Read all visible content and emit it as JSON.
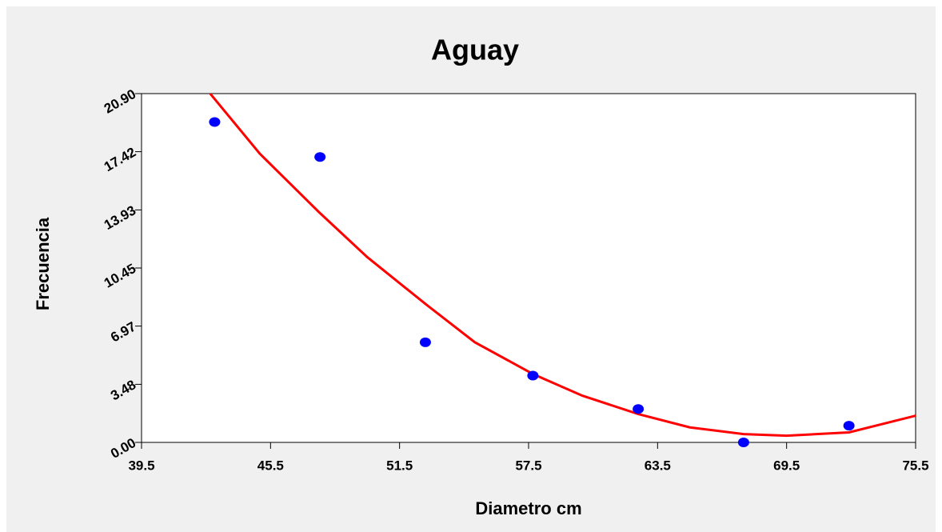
{
  "chart_data": {
    "type": "scatter",
    "title": "Aguay",
    "xlabel": "Diametro cm",
    "ylabel": "Frecuencia",
    "series": [
      {
        "type": "scatter",
        "color": "#0000ff",
        "x": [
          42.9,
          47.8,
          52.7,
          57.7,
          62.6,
          67.5,
          72.4
        ],
        "values": [
          19.2,
          17.1,
          6.0,
          4.0,
          2.0,
          0.0,
          1.0
        ]
      },
      {
        "type": "line",
        "color": "#ff0000",
        "x": [
          42.5,
          45.0,
          47.75,
          50.0,
          52.7,
          55.0,
          57.7,
          60.0,
          62.6,
          65.0,
          67.5,
          69.5,
          72.4,
          75.5
        ],
        "values": [
          21.2,
          17.3,
          13.8,
          11.1,
          8.3,
          6.0,
          4.1,
          2.8,
          1.7,
          0.9,
          0.5,
          0.4,
          0.6,
          1.6
        ]
      }
    ],
    "xlim": [
      39.5,
      75.5
    ],
    "xticks": [
      39.5,
      45.5,
      51.5,
      57.5,
      63.5,
      69.5,
      75.5
    ],
    "ylim": [
      0,
      20.9
    ],
    "yticks": [
      {
        "value": 0,
        "label": "0.00"
      },
      3.48,
      6.97,
      10.45,
      13.93,
      17.42,
      {
        "value": 20.9,
        "label": "20.90"
      }
    ]
  }
}
